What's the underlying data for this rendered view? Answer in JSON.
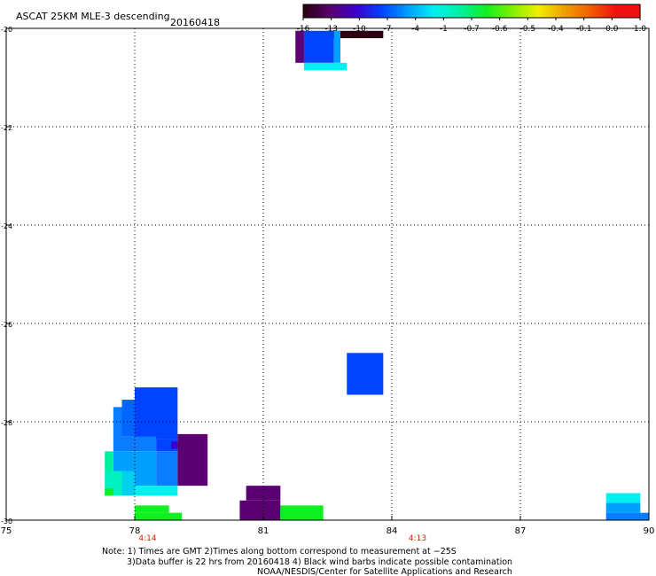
{
  "header": {
    "title": "ASCAT 25KM MLE-3 descending",
    "date": "20160418"
  },
  "colorbar": {
    "labels": [
      "-16",
      "-13",
      "-10",
      "-7",
      "-4",
      "-1",
      "-0.7",
      "-0.6",
      "-0.5",
      "-0.4",
      "-0.1",
      "0.0",
      "1.0"
    ],
    "colors": [
      "#2a0012",
      "#5a0070",
      "#3a00d0",
      "#0044ff",
      "#00a0ff",
      "#00f0f0",
      "#00f0a0",
      "#10f020",
      "#80f000",
      "#f0f000",
      "#f0a000",
      "#f06000",
      "#f01010"
    ]
  },
  "notes": {
    "line1": "Note: 1) Times are GMT 2)Times along bottom correspond to measurement at −25S",
    "line2": "3)Data buffer is 22 hrs from 20160418 4) Black wind barbs indicate possible contamination",
    "line3": "NOAA/NESDIS/Center for Satellite Applications and Research"
  },
  "chart_data": {
    "type": "heatmap",
    "xlim": [
      75,
      90
    ],
    "ylim": [
      -30,
      -20
    ],
    "x_ticks": [
      75,
      78,
      81,
      84,
      87,
      90
    ],
    "y_ticks": [
      -20,
      -22,
      -24,
      -26,
      -28,
      -30
    ],
    "x_tick_labels": [
      "75",
      "78",
      "81",
      "84",
      "87",
      "90"
    ],
    "y_tick_labels": [
      "-20",
      "-22",
      "-24",
      "-26",
      "-28",
      "-30"
    ],
    "grid": true,
    "time_labels": [
      {
        "x": 78.3,
        "text": "4:14"
      },
      {
        "x": 84.6,
        "text": "4:13"
      }
    ],
    "cells": [
      {
        "x0": 82.6,
        "x1": 83.8,
        "y0": -20.05,
        "y1": -20.2,
        "color": "#2a0012"
      },
      {
        "x0": 81.75,
        "x1": 81.95,
        "y0": -20.05,
        "y1": -20.7,
        "color": "#5a0070"
      },
      {
        "x0": 81.95,
        "x1": 82.65,
        "y0": -20.05,
        "y1": -20.7,
        "color": "#0044ff"
      },
      {
        "x0": 82.65,
        "x1": 82.8,
        "y0": -20.05,
        "y1": -20.7,
        "color": "#00a0ff"
      },
      {
        "x0": 81.95,
        "x1": 82.95,
        "y0": -20.7,
        "y1": -20.85,
        "color": "#00f0f0"
      },
      {
        "x0": 82.95,
        "x1": 83.8,
        "y0": -26.6,
        "y1": -27.45,
        "color": "#0044ff"
      },
      {
        "x0": 78.0,
        "x1": 79.0,
        "y0": -27.3,
        "y1": -28.35,
        "color": "#0044ff"
      },
      {
        "x0": 77.7,
        "x1": 78.0,
        "y0": -27.55,
        "y1": -28.3,
        "color": "#0066ff"
      },
      {
        "x0": 77.5,
        "x1": 77.7,
        "y0": -27.7,
        "y1": -28.6,
        "color": "#0a7cff"
      },
      {
        "x0": 77.7,
        "x1": 78.5,
        "y0": -28.3,
        "y1": -28.6,
        "color": "#0a7cff"
      },
      {
        "x0": 78.5,
        "x1": 79.0,
        "y0": -28.35,
        "y1": -28.6,
        "color": "#0044ff"
      },
      {
        "x0": 77.5,
        "x1": 78.5,
        "y0": -28.6,
        "y1": -29.3,
        "color": "#00a0ff"
      },
      {
        "x0": 78.5,
        "x1": 79.0,
        "y0": -28.6,
        "y1": -29.3,
        "color": "#0a7cff"
      },
      {
        "x0": 79.0,
        "x1": 79.7,
        "y0": -28.25,
        "y1": -29.3,
        "color": "#5a0070"
      },
      {
        "x0": 78.85,
        "x1": 79.0,
        "y0": -28.4,
        "y1": -28.55,
        "color": "#3a00d0"
      },
      {
        "x0": 77.3,
        "x1": 77.5,
        "y0": -28.6,
        "y1": -29.0,
        "color": "#00f0a0"
      },
      {
        "x0": 77.3,
        "x1": 77.7,
        "y0": -29.0,
        "y1": -29.5,
        "color": "#00f0c0"
      },
      {
        "x0": 77.7,
        "x1": 78.0,
        "y0": -29.0,
        "y1": -29.5,
        "color": "#00d0f0"
      },
      {
        "x0": 78.0,
        "x1": 79.0,
        "y0": -29.3,
        "y1": -29.5,
        "color": "#00f0f0"
      },
      {
        "x0": 77.3,
        "x1": 77.5,
        "y0": -29.35,
        "y1": -29.5,
        "color": "#10f020"
      },
      {
        "x0": 78.0,
        "x1": 78.8,
        "y0": -29.7,
        "y1": -29.85,
        "color": "#10f020"
      },
      {
        "x0": 78.0,
        "x1": 79.1,
        "y0": -29.85,
        "y1": -30.0,
        "color": "#10f020"
      },
      {
        "x0": 80.6,
        "x1": 81.4,
        "y0": -29.3,
        "y1": -29.6,
        "color": "#5a0070"
      },
      {
        "x0": 80.45,
        "x1": 81.4,
        "y0": -29.6,
        "y1": -30.0,
        "color": "#5a0070"
      },
      {
        "x0": 81.4,
        "x1": 82.4,
        "y0": -29.7,
        "y1": -30.0,
        "color": "#10f020"
      },
      {
        "x0": 81.4,
        "x1": 81.6,
        "y0": -29.85,
        "y1": -30.0,
        "color": "#10f020"
      },
      {
        "x0": 89.0,
        "x1": 89.8,
        "y0": -29.45,
        "y1": -29.65,
        "color": "#00f0f0"
      },
      {
        "x0": 89.0,
        "x1": 89.8,
        "y0": -29.65,
        "y1": -29.85,
        "color": "#00a0ff"
      },
      {
        "x0": 89.0,
        "x1": 90.0,
        "y0": -29.85,
        "y1": -30.0,
        "color": "#0a7cff"
      }
    ]
  }
}
